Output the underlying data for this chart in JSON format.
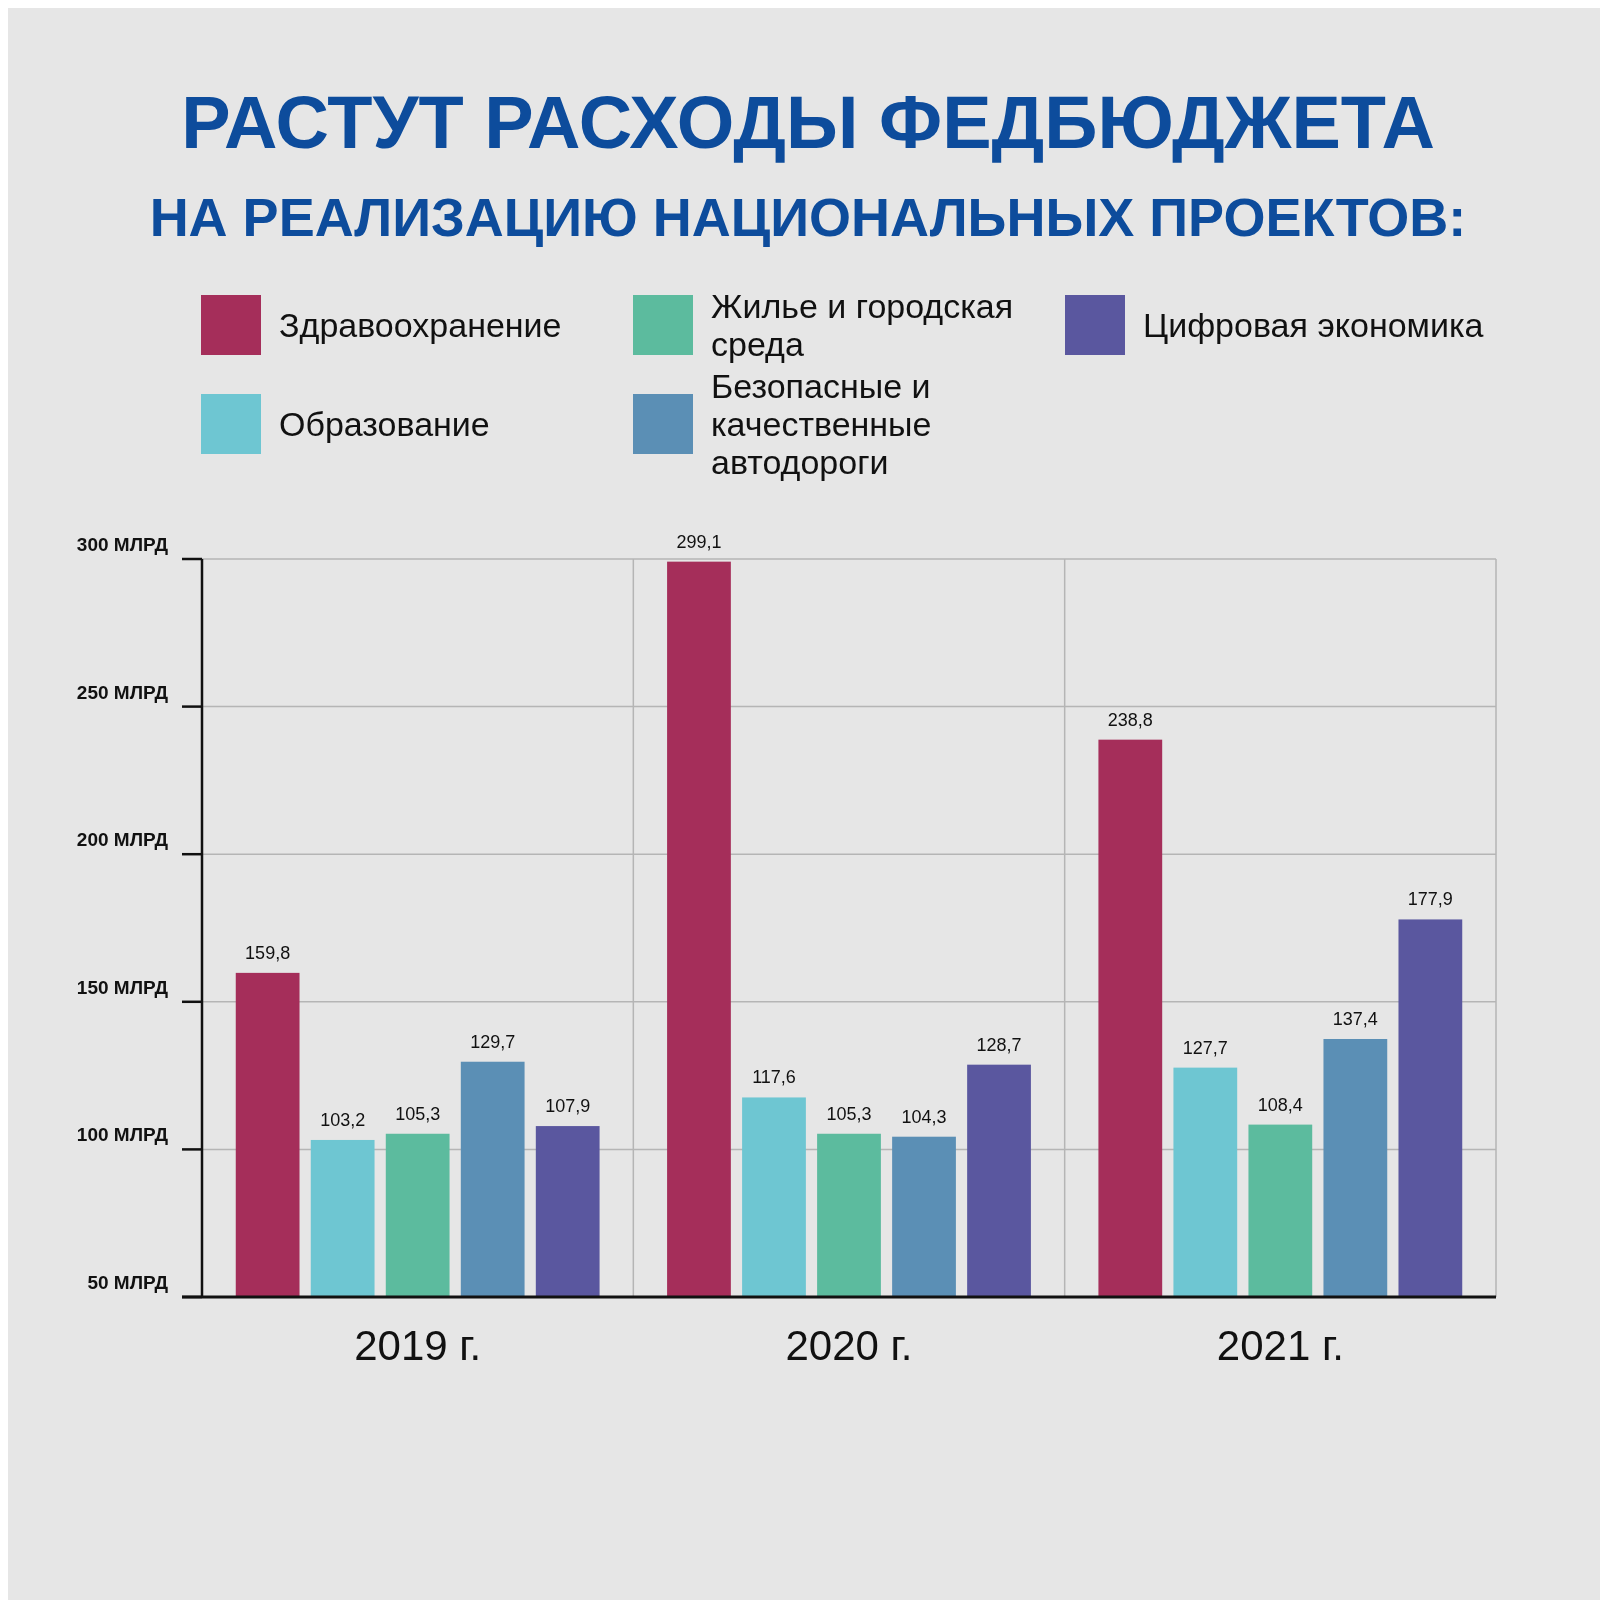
{
  "chart_data": {
    "type": "bar",
    "title": "РАСТУТ РАСХОДЫ ФЕДБЮДЖЕТА",
    "subtitle": "НА РЕАЛИЗАЦИЮ НАЦИОНАЛЬНЫХ ПРОЕКТОВ:",
    "categories": [
      "2019 г.",
      "2020 г.",
      "2021 г."
    ],
    "series": [
      {
        "name": "Здравоохранение",
        "color": "#a52e5a",
        "values": [
          159.8,
          299.1,
          238.8
        ],
        "value_labels": [
          "159,8",
          "299,1",
          "238,8"
        ]
      },
      {
        "name": "Образование",
        "color": "#6ec6d2",
        "values": [
          103.2,
          117.6,
          127.7
        ],
        "value_labels": [
          "103,2",
          "117,6",
          "127,7"
        ]
      },
      {
        "name": "Жилье и городская среда",
        "color": "#5cbb9e",
        "values": [
          105.3,
          105.3,
          108.4
        ],
        "value_labels": [
          "105,3",
          "105,3",
          "108,4"
        ]
      },
      {
        "name": "Безопасные и качественные автодороги",
        "color": "#5b8fb5",
        "values": [
          129.7,
          104.3,
          137.4
        ],
        "value_labels": [
          "129,7",
          "104,3",
          "137,4"
        ]
      },
      {
        "name": "Цифровая экономика",
        "color": "#5a579f",
        "values": [
          107.9,
          128.7,
          177.9
        ],
        "value_labels": [
          "107,9",
          "128,7",
          "177,9"
        ]
      }
    ],
    "ylim": [
      50,
      300
    ],
    "yticks": [
      {
        "value": 50,
        "label": "50 МЛРД"
      },
      {
        "value": 100,
        "label": "100 МЛРД"
      },
      {
        "value": 150,
        "label": "150 МЛРД"
      },
      {
        "value": 200,
        "label": "200 МЛРД"
      },
      {
        "value": 250,
        "label": "250 МЛРД"
      },
      {
        "value": 300,
        "label": "300 МЛРД"
      }
    ],
    "grid": true,
    "legend": "top"
  }
}
